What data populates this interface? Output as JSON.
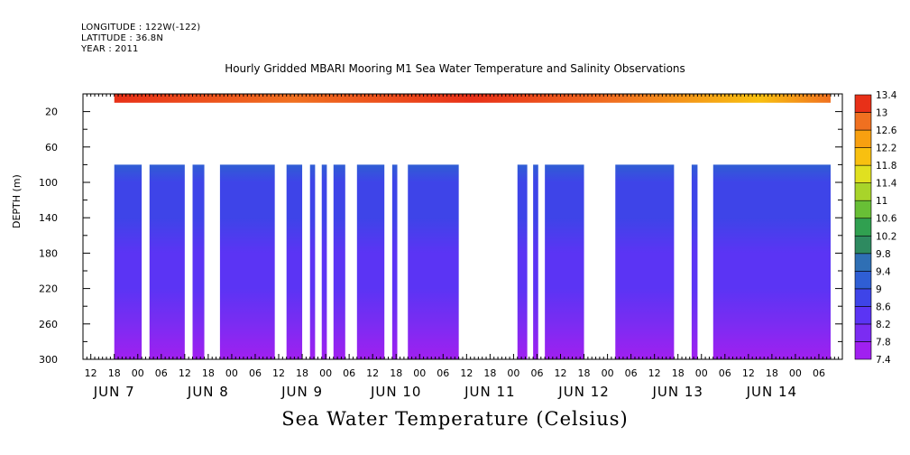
{
  "header": {
    "longitude": "LONGITUDE : 122W(-122)",
    "latitude": "LATITUDE : 36.8N",
    "year": "YEAR : 2011"
  },
  "chart_data": {
    "type": "heatmap",
    "title": "Hourly Gridded MBARI Mooring M1 Sea Water Temperature and Salinity Observations",
    "xlabel": "",
    "ylabel": "DEPTH (m)",
    "colorbar_label": "Sea Water Temperature (Celsius)",
    "x_range_hours": [
      0,
      186
    ],
    "ylim": [
      300,
      0
    ],
    "y_ticks": [
      20,
      60,
      100,
      140,
      180,
      220,
      260,
      300
    ],
    "x_hour_ticks": [
      {
        "h": 0,
        "label": "12"
      },
      {
        "h": 6,
        "label": "18"
      },
      {
        "h": 12,
        "label": "00"
      },
      {
        "h": 18,
        "label": "06"
      },
      {
        "h": 24,
        "label": "12"
      },
      {
        "h": 30,
        "label": "18"
      },
      {
        "h": 36,
        "label": "00"
      },
      {
        "h": 42,
        "label": "06"
      },
      {
        "h": 48,
        "label": "12"
      },
      {
        "h": 54,
        "label": "18"
      },
      {
        "h": 60,
        "label": "00"
      },
      {
        "h": 66,
        "label": "06"
      },
      {
        "h": 72,
        "label": "12"
      },
      {
        "h": 78,
        "label": "18"
      },
      {
        "h": 84,
        "label": "00"
      },
      {
        "h": 90,
        "label": "06"
      },
      {
        "h": 96,
        "label": "12"
      },
      {
        "h": 102,
        "label": "18"
      },
      {
        "h": 108,
        "label": "00"
      },
      {
        "h": 114,
        "label": "06"
      },
      {
        "h": 120,
        "label": "12"
      },
      {
        "h": 126,
        "label": "18"
      },
      {
        "h": 132,
        "label": "00"
      },
      {
        "h": 138,
        "label": "06"
      },
      {
        "h": 144,
        "label": "12"
      },
      {
        "h": 150,
        "label": "18"
      },
      {
        "h": 156,
        "label": "00"
      },
      {
        "h": 162,
        "label": "06"
      },
      {
        "h": 168,
        "label": "12"
      },
      {
        "h": 174,
        "label": "18"
      },
      {
        "h": 180,
        "label": "00"
      },
      {
        "h": 186,
        "label": "06"
      }
    ],
    "x_date_labels": [
      {
        "h": 6,
        "label": "JUN  7"
      },
      {
        "h": 30,
        "label": "JUN  8"
      },
      {
        "h": 54,
        "label": "JUN  9"
      },
      {
        "h": 78,
        "label": "JUN 10"
      },
      {
        "h": 102,
        "label": "JUN 11"
      },
      {
        "h": 126,
        "label": "JUN 12"
      },
      {
        "h": 150,
        "label": "JUN 13"
      },
      {
        "h": 174,
        "label": "JUN 14"
      }
    ],
    "surface_layer": {
      "depth_range": [
        0,
        10
      ],
      "start_hour": 6,
      "end_hour": 189,
      "temperature_range": [
        11.8,
        13.0
      ]
    },
    "deep_layer": {
      "depth_range": [
        80,
        300
      ],
      "segments": [
        [
          6,
          13
        ],
        [
          15,
          24
        ],
        [
          26,
          29
        ],
        [
          33,
          47
        ],
        [
          50,
          54
        ],
        [
          56,
          57.3
        ],
        [
          59,
          60.3
        ],
        [
          62,
          65
        ],
        [
          68,
          75
        ],
        [
          77,
          78.3
        ],
        [
          81,
          94
        ],
        [
          109,
          111.5
        ],
        [
          113,
          114.3
        ],
        [
          116,
          126
        ],
        [
          134,
          149
        ],
        [
          153.5,
          155
        ],
        [
          159,
          189
        ]
      ],
      "temperature_profile": [
        {
          "depth": 80,
          "temp": 9.0
        },
        {
          "depth": 100,
          "temp": 8.8
        },
        {
          "depth": 140,
          "temp": 8.6
        },
        {
          "depth": 180,
          "temp": 8.4
        },
        {
          "depth": 220,
          "temp": 8.2
        },
        {
          "depth": 260,
          "temp": 7.9
        },
        {
          "depth": 300,
          "temp": 7.6
        }
      ]
    },
    "colorbar": {
      "levels": [
        7.4,
        7.8,
        8.2,
        8.6,
        9,
        9.4,
        9.8,
        10.2,
        10.6,
        11,
        11.4,
        11.8,
        12.2,
        12.6,
        13,
        13.4
      ],
      "labels": [
        "7.4",
        "7.8",
        "8.2",
        "8.6",
        "9",
        "9.4",
        "9.8",
        "10.2",
        "10.6",
        "11",
        "11.4",
        "11.8",
        "12.2",
        "12.6",
        "13",
        "13.4"
      ],
      "colors": [
        "#a020f0",
        "#7b2cf2",
        "#5b34f4",
        "#3e44e8",
        "#2f5ed4",
        "#2f6fb4",
        "#2e8a60",
        "#30a050",
        "#68bf36",
        "#a8d42a",
        "#e0e020",
        "#f8c010",
        "#f8a010",
        "#f07020",
        "#e83018",
        "#a01010"
      ]
    }
  }
}
